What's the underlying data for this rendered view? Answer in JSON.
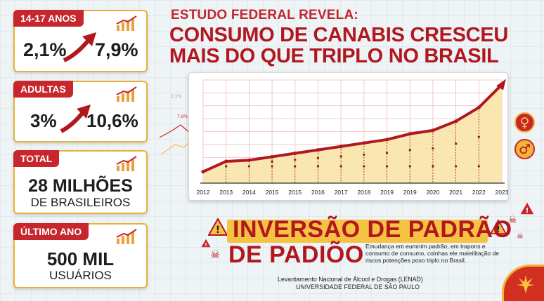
{
  "header": {
    "kicker": "ESTUDO FEDERAL REVELA:",
    "headline_line1": "CONSUMO DE CANABIS CRESCEU",
    "headline_line2": "MAIS DO QUE TRIPLO NO BRASIL"
  },
  "cards": [
    {
      "tag": "14-17 ANOS",
      "from": "2,1%",
      "to": "7,9%"
    },
    {
      "tag": "ADULTAS",
      "from": "3%",
      "to": "10,6%"
    },
    {
      "tag": "TOTAL",
      "line1": "28 MILHÕES",
      "line2": "DE BRASILEIROS"
    },
    {
      "tag": "ÚLTIMO ANO",
      "line1": "500 MIL",
      "line2": "USUÁRIOS"
    }
  ],
  "side_labels": {
    "a": "2,1%",
    "b": "7,9%"
  },
  "banner": {
    "line1": "INVERSÃO DE PADRÃO",
    "line2": "DE PADIÕO",
    "description": "Emudança em eumnim padrão, em trapons e consumo de consumo, coinhas ele maieilitação de riscos potenções poso triplo no Brasil."
  },
  "source": {
    "line1": "Levantamento Nacional de Álcool e Drogas (LENAD)",
    "line2": "UNIVERSIDADE FEDERAL DE SÃO PAULO"
  },
  "icons": {
    "female": "female-symbol-icon",
    "male": "male-symbol-icon",
    "warning": "warning-icon",
    "leaf": "cannabis-leaf-icon"
  },
  "colors": {
    "red": "#b1171f",
    "gold": "#f3b43a",
    "fill": "#f8e3a8"
  },
  "chart_data": {
    "type": "area",
    "x": [
      "2012",
      "2013",
      "2014",
      "2015",
      "2015",
      "2016",
      "2017",
      "2018",
      "2019",
      "2019",
      "2020",
      "2021",
      "2022",
      "2023"
    ],
    "values": [
      1.0,
      1.9,
      2.0,
      2.3,
      2.6,
      2.9,
      3.2,
      3.5,
      3.8,
      4.3,
      4.6,
      5.4,
      6.6,
      8.6
    ],
    "ylim": [
      0,
      9
    ],
    "grid": true
  }
}
